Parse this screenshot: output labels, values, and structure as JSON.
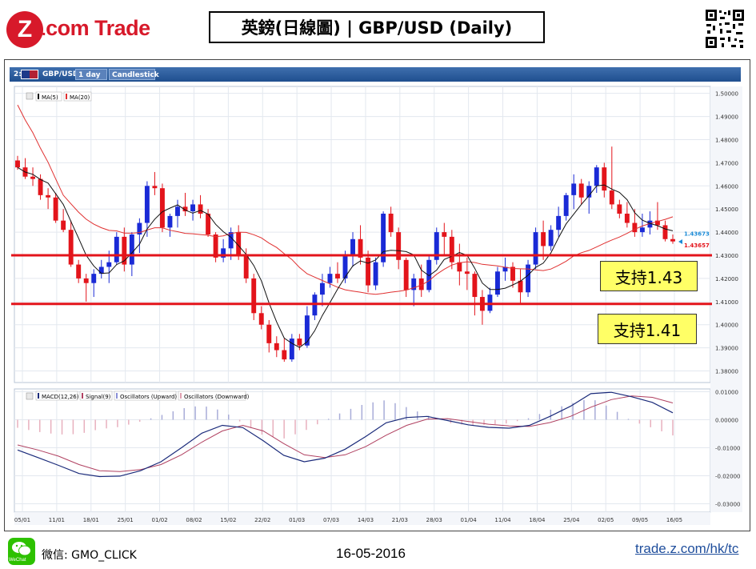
{
  "header": {
    "logo_brand": "Z.com Trade",
    "title": "英鎊(日線圖) | GBP/USD  (Daily)"
  },
  "toolbar": {
    "prefix": "2:",
    "symbol": "GBP/USD",
    "interval": "1 day",
    "chart_type": "Candlestick"
  },
  "legend_top": {
    "ma5": "MA(5)",
    "ma20": "MA(20)"
  },
  "legend_bottom": {
    "macd": "MACD(12,26)",
    "signal": "Signal(9)",
    "osc_up": "Oscillators (Upward)",
    "osc_down": "Oscillators (Downward)"
  },
  "supports": {
    "s1": "支持1.43",
    "s2": "支持1.41"
  },
  "footer": {
    "wechat_icon_label": "WeChat",
    "wechat_id": "微信: GMO_CLICK",
    "date": "16-05-2016",
    "link": "trade.z.com/hk/tc"
  },
  "colors": {
    "up": "#1a2ad6",
    "down": "#e3141b",
    "ma5": "#111111",
    "ma20": "#e03030",
    "support_line": "#e3141b",
    "macd": "#1a2a7a",
    "signal": "#b04060"
  },
  "chart_data": [
    {
      "type": "candlestick",
      "ylim": [
        1.375,
        1.503
      ],
      "y_ticks": [
        "1.50000",
        "1.49000",
        "1.48000",
        "1.47000",
        "1.46000",
        "1.45000",
        "1.44000",
        "1.43000",
        "1.42000",
        "1.41000",
        "1.40000",
        "1.39000",
        "1.38000"
      ],
      "x_labels": [
        "05/01",
        "11/01",
        "18/01",
        "25/01",
        "01/02",
        "08/02",
        "15/02",
        "22/02",
        "01/03",
        "07/03",
        "14/03",
        "21/03",
        "28/03",
        "01/04",
        "11/04",
        "18/04",
        "25/04",
        "02/05",
        "09/05",
        "16/05"
      ],
      "last_price_labels": [
        {
          "value": 1.43673,
          "text": "1.43673",
          "color": "#1a8ad6"
        },
        {
          "value": 1.43657,
          "text": "1.43657",
          "color": "#e3141b"
        }
      ],
      "support_levels": [
        1.43,
        1.409
      ],
      "ohlc": [
        [
          1.471,
          1.473,
          1.467,
          1.468
        ],
        [
          1.468,
          1.472,
          1.463,
          1.464
        ],
        [
          1.464,
          1.468,
          1.46,
          1.463
        ],
        [
          1.463,
          1.465,
          1.454,
          1.456
        ],
        [
          1.456,
          1.459,
          1.45,
          1.455
        ],
        [
          1.455,
          1.457,
          1.444,
          1.445
        ],
        [
          1.445,
          1.45,
          1.44,
          1.441
        ],
        [
          1.441,
          1.445,
          1.425,
          1.426
        ],
        [
          1.426,
          1.428,
          1.418,
          1.42
        ],
        [
          1.42,
          1.422,
          1.41,
          1.418
        ],
        [
          1.418,
          1.424,
          1.412,
          1.422
        ],
        [
          1.422,
          1.428,
          1.42,
          1.425
        ],
        [
          1.425,
          1.432,
          1.418,
          1.427
        ],
        [
          1.427,
          1.44,
          1.426,
          1.438
        ],
        [
          1.438,
          1.442,
          1.423,
          1.426
        ],
        [
          1.426,
          1.44,
          1.421,
          1.439
        ],
        [
          1.439,
          1.446,
          1.431,
          1.444
        ],
        [
          1.444,
          1.462,
          1.438,
          1.46
        ],
        [
          1.46,
          1.466,
          1.456,
          1.459
        ],
        [
          1.459,
          1.461,
          1.44,
          1.442
        ],
        [
          1.442,
          1.448,
          1.438,
          1.447
        ],
        [
          1.447,
          1.454,
          1.442,
          1.451
        ],
        [
          1.451,
          1.457,
          1.447,
          1.449
        ],
        [
          1.449,
          1.454,
          1.445,
          1.452
        ],
        [
          1.452,
          1.456,
          1.446,
          1.448
        ],
        [
          1.448,
          1.45,
          1.438,
          1.439
        ],
        [
          1.439,
          1.44,
          1.427,
          1.429
        ],
        [
          1.429,
          1.437,
          1.427,
          1.433
        ],
        [
          1.433,
          1.442,
          1.428,
          1.44
        ],
        [
          1.44,
          1.443,
          1.428,
          1.43
        ],
        [
          1.43,
          1.433,
          1.418,
          1.42
        ],
        [
          1.42,
          1.422,
          1.402,
          1.405
        ],
        [
          1.405,
          1.408,
          1.398,
          1.4
        ],
        [
          1.4,
          1.402,
          1.388,
          1.392
        ],
        [
          1.392,
          1.395,
          1.386,
          1.389
        ],
        [
          1.389,
          1.394,
          1.384,
          1.385
        ],
        [
          1.385,
          1.396,
          1.384,
          1.394
        ],
        [
          1.394,
          1.396,
          1.389,
          1.391
        ],
        [
          1.391,
          1.408,
          1.39,
          1.404
        ],
        [
          1.404,
          1.414,
          1.402,
          1.413
        ],
        [
          1.413,
          1.422,
          1.408,
          1.418
        ],
        [
          1.418,
          1.425,
          1.416,
          1.422
        ],
        [
          1.422,
          1.427,
          1.418,
          1.42
        ],
        [
          1.42,
          1.432,
          1.418,
          1.43
        ],
        [
          1.43,
          1.44,
          1.425,
          1.437
        ],
        [
          1.437,
          1.443,
          1.426,
          1.429
        ],
        [
          1.429,
          1.432,
          1.414,
          1.417
        ],
        [
          1.417,
          1.429,
          1.415,
          1.427
        ],
        [
          1.427,
          1.449,
          1.425,
          1.448
        ],
        [
          1.448,
          1.451,
          1.438,
          1.44
        ],
        [
          1.44,
          1.442,
          1.424,
          1.428
        ],
        [
          1.428,
          1.429,
          1.412,
          1.415
        ],
        [
          1.415,
          1.422,
          1.408,
          1.42
        ],
        [
          1.42,
          1.426,
          1.412,
          1.415
        ],
        [
          1.415,
          1.43,
          1.414,
          1.428
        ],
        [
          1.428,
          1.442,
          1.426,
          1.44
        ],
        [
          1.44,
          1.444,
          1.43,
          1.438
        ],
        [
          1.438,
          1.441,
          1.424,
          1.427
        ],
        [
          1.427,
          1.435,
          1.417,
          1.423
        ],
        [
          1.423,
          1.429,
          1.415,
          1.422
        ],
        [
          1.422,
          1.423,
          1.404,
          1.412
        ],
        [
          1.412,
          1.415,
          1.4,
          1.406
        ],
        [
          1.406,
          1.416,
          1.405,
          1.413
        ],
        [
          1.413,
          1.425,
          1.412,
          1.423
        ],
        [
          1.423,
          1.429,
          1.419,
          1.425
        ],
        [
          1.425,
          1.427,
          1.416,
          1.419
        ],
        [
          1.419,
          1.424,
          1.409,
          1.414
        ],
        [
          1.414,
          1.428,
          1.412,
          1.426
        ],
        [
          1.426,
          1.442,
          1.424,
          1.44
        ],
        [
          1.44,
          1.445,
          1.428,
          1.434
        ],
        [
          1.434,
          1.443,
          1.432,
          1.441
        ],
        [
          1.441,
          1.451,
          1.438,
          1.447
        ],
        [
          1.447,
          1.457,
          1.445,
          1.456
        ],
        [
          1.456,
          1.465,
          1.45,
          1.461
        ],
        [
          1.461,
          1.463,
          1.452,
          1.455
        ],
        [
          1.455,
          1.462,
          1.448,
          1.46
        ],
        [
          1.46,
          1.469,
          1.457,
          1.468
        ],
        [
          1.468,
          1.47,
          1.455,
          1.458
        ],
        [
          1.458,
          1.477,
          1.45,
          1.452
        ],
        [
          1.452,
          1.454,
          1.446,
          1.448
        ],
        [
          1.448,
          1.453,
          1.442,
          1.444
        ],
        [
          1.444,
          1.45,
          1.438,
          1.44
        ],
        [
          1.44,
          1.448,
          1.438,
          1.442
        ],
        [
          1.442,
          1.449,
          1.439,
          1.445
        ],
        [
          1.445,
          1.453,
          1.441,
          1.443
        ],
        [
          1.443,
          1.445,
          1.436,
          1.437
        ],
        [
          1.437,
          1.439,
          1.435,
          1.436
        ]
      ]
    },
    {
      "type": "line",
      "series_names": [
        "MACD(12,26)",
        "Signal(9)",
        "Oscillators (Upward)",
        "Oscillators (Downward)"
      ],
      "ylim": [
        -0.033,
        0.011
      ],
      "y_ticks": [
        "0.01000",
        "0.00000",
        "-0.01000",
        "-0.02000",
        "-0.03000"
      ],
      "x_labels": [
        "05/01",
        "11/01",
        "18/01",
        "25/01",
        "01/02",
        "08/02",
        "15/02",
        "22/02",
        "01/03",
        "07/03",
        "14/03",
        "21/03",
        "28/03",
        "01/04",
        "11/04",
        "18/04",
        "25/04",
        "02/05",
        "09/05",
        "16/05"
      ],
      "macd_points": [
        -0.0108,
        -0.0135,
        -0.0163,
        -0.0192,
        -0.0203,
        -0.0201,
        -0.0182,
        -0.015,
        -0.01,
        -0.0048,
        -0.002,
        -0.0028,
        -0.0075,
        -0.0127,
        -0.015,
        -0.0137,
        -0.0105,
        -0.006,
        -0.0011,
        0.0008,
        0.0012,
        -0.0003,
        -0.0018,
        -0.0027,
        -0.003,
        -0.002,
        0.0012,
        0.0048,
        0.0093,
        0.0098,
        0.0082,
        0.0062,
        0.0025
      ],
      "signal_points": [
        -0.009,
        -0.0108,
        -0.013,
        -0.016,
        -0.0182,
        -0.0185,
        -0.0178,
        -0.016,
        -0.0125,
        -0.008,
        -0.004,
        -0.002,
        -0.004,
        -0.0085,
        -0.0125,
        -0.0135,
        -0.0125,
        -0.0096,
        -0.0055,
        -0.002,
        0.0002,
        0.0004,
        -0.0006,
        -0.0016,
        -0.0022,
        -0.0024,
        -0.001,
        0.0012,
        0.0045,
        0.0072,
        0.0085,
        0.008,
        0.006
      ]
    }
  ]
}
